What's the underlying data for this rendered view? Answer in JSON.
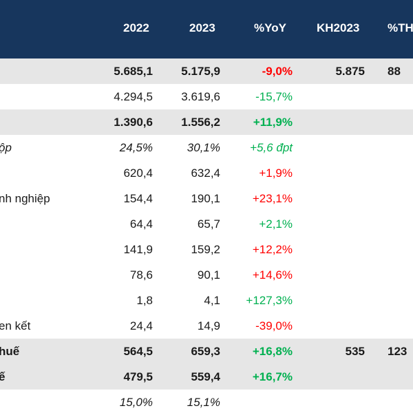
{
  "header": {
    "col_2022": "2022",
    "col_2023": "2023",
    "col_yoy": "%YoY",
    "col_kh": "KH2023",
    "col_th": "%TH"
  },
  "rows": [
    {
      "label": "",
      "v2022": "5.685,1",
      "v2023": "5.175,9",
      "yoy": "-9,0%",
      "kh": "5.875",
      "th": "88"
    },
    {
      "label": "",
      "v2022": "4.294,5",
      "v2023": "3.619,6",
      "yoy": "-15,7%",
      "kh": "",
      "th": ""
    },
    {
      "label": "",
      "v2022": "1.390,6",
      "v2023": "1.556,2",
      "yoy": "+11,9%",
      "kh": "",
      "th": ""
    },
    {
      "label": "ộp",
      "v2022": "24,5%",
      "v2023": "30,1%",
      "yoy": "+5,6 đpt",
      "kh": "",
      "th": ""
    },
    {
      "label": "",
      "v2022": "620,4",
      "v2023": "632,4",
      "yoy": "+1,9%",
      "kh": "",
      "th": ""
    },
    {
      "label": "nh nghiệp",
      "v2022": "154,4",
      "v2023": "190,1",
      "yoy": "+23,1%",
      "kh": "",
      "th": ""
    },
    {
      "label": "",
      "v2022": "64,4",
      "v2023": "65,7",
      "yoy": "+2,1%",
      "kh": "",
      "th": ""
    },
    {
      "label": "",
      "v2022": "141,9",
      "v2023": "159,2",
      "yoy": "+12,2%",
      "kh": "",
      "th": ""
    },
    {
      "label": "",
      "v2022": "78,6",
      "v2023": "90,1",
      "yoy": "+14,6%",
      "kh": "",
      "th": ""
    },
    {
      "label": "",
      "v2022": "1,8",
      "v2023": "4,1",
      "yoy": "+127,3%",
      "kh": "",
      "th": ""
    },
    {
      "label": "en kết",
      "v2022": "24,4",
      "v2023": "14,9",
      "yoy": "-39,0%",
      "kh": "",
      "th": ""
    },
    {
      "label": "huế",
      "v2022": "564,5",
      "v2023": "659,3",
      "yoy": "+16,8%",
      "kh": "535",
      "th": "123"
    },
    {
      "label": "ế",
      "v2022": "479,5",
      "v2023": "559,4",
      "yoy": "+16,7%",
      "kh": "",
      "th": ""
    },
    {
      "label": "",
      "v2022": "15,0%",
      "v2023": "15,1%",
      "yoy": "",
      "kh": "",
      "th": ""
    }
  ],
  "colors": {
    "header_bg": "#17365d",
    "shade_bg": "#e6e6e6",
    "negative": "#ff0000",
    "positive": "#00b050"
  }
}
